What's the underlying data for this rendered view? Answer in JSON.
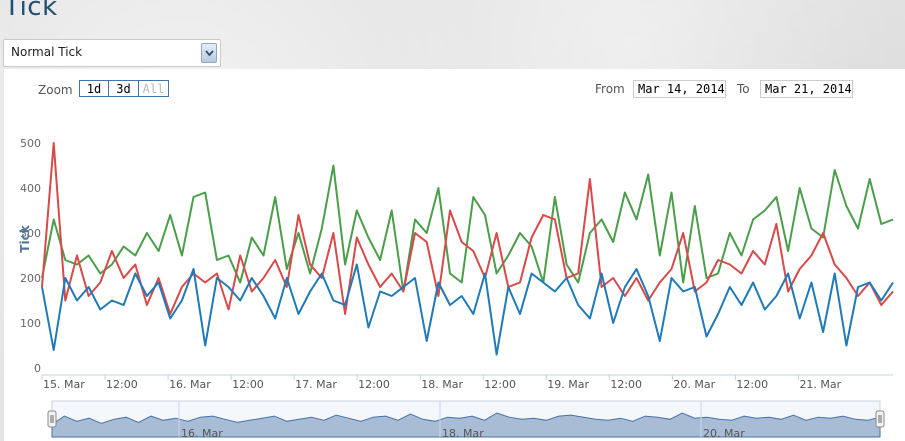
{
  "page": {
    "title": "Tick"
  },
  "selector": {
    "value": "Normal Tick"
  },
  "zoom": {
    "label": "Zoom",
    "buttons": [
      "1d",
      "3d",
      "All"
    ]
  },
  "range": {
    "from_label": "From",
    "from_value": "Mar 14, 2014",
    "to_label": "To",
    "to_value": "Mar 21, 2014"
  },
  "chart_data": {
    "type": "line",
    "ylabel": "Tick",
    "ylim": [
      0,
      500
    ],
    "yticks": [
      0,
      100,
      200,
      300,
      400,
      500
    ],
    "xlim": [
      "2014-03-15T00:00",
      "2014-03-21T18:00"
    ],
    "xticks": [
      {
        "t": "2014-03-15T00:00",
        "label": "15. Mar"
      },
      {
        "t": "2014-03-15T12:00",
        "label": "12:00"
      },
      {
        "t": "2014-03-16T00:00",
        "label": "16. Mar"
      },
      {
        "t": "2014-03-16T12:00",
        "label": "12:00"
      },
      {
        "t": "2014-03-17T00:00",
        "label": "17. Mar"
      },
      {
        "t": "2014-03-17T12:00",
        "label": "12:00"
      },
      {
        "t": "2014-03-18T00:00",
        "label": "18. Mar"
      },
      {
        "t": "2014-03-18T12:00",
        "label": "12:00"
      },
      {
        "t": "2014-03-19T00:00",
        "label": "19. Mar"
      },
      {
        "t": "2014-03-19T12:00",
        "label": "12:00"
      },
      {
        "t": "2014-03-20T00:00",
        "label": "20. Mar"
      },
      {
        "t": "2014-03-20T12:00",
        "label": "12:00"
      },
      {
        "t": "2014-03-21T00:00",
        "label": "21. Mar"
      }
    ],
    "navigator_ticks": [
      "16. Mar",
      "18. Mar",
      "20. Mar"
    ],
    "series": [
      {
        "color": "#4a9e4a",
        "values": [
          200,
          330,
          240,
          230,
          250,
          210,
          230,
          270,
          250,
          300,
          260,
          340,
          250,
          380,
          390,
          240,
          250,
          190,
          290,
          250,
          380,
          220,
          300,
          210,
          310,
          450,
          230,
          350,
          290,
          240,
          350,
          170,
          330,
          300,
          400,
          210,
          190,
          380,
          340,
          210,
          250,
          300,
          270,
          190,
          380,
          230,
          190,
          300,
          330,
          280,
          390,
          330,
          430,
          250,
          390,
          190,
          360,
          200,
          210,
          300,
          250,
          330,
          350,
          380,
          260,
          400,
          310,
          290,
          440,
          360,
          310,
          420,
          320,
          330
        ]
      },
      {
        "color": "#d84a4a",
        "values": [
          180,
          500,
          150,
          250,
          160,
          190,
          260,
          200,
          230,
          140,
          200,
          120,
          180,
          210,
          190,
          210,
          130,
          250,
          170,
          200,
          240,
          180,
          340,
          230,
          200,
          300,
          120,
          290,
          230,
          180,
          210,
          170,
          300,
          280,
          160,
          350,
          280,
          260,
          200,
          300,
          180,
          190,
          290,
          340,
          330,
          200,
          210,
          420,
          180,
          200,
          160,
          200,
          150,
          190,
          220,
          300,
          170,
          190,
          240,
          230,
          210,
          260,
          230,
          320,
          170,
          220,
          250,
          300,
          230,
          200,
          160,
          190,
          140,
          170
        ]
      },
      {
        "color": "#1f7ab8",
        "values": [
          180,
          40,
          200,
          150,
          180,
          130,
          150,
          140,
          210,
          160,
          190,
          110,
          150,
          220,
          50,
          200,
          180,
          150,
          200,
          160,
          110,
          200,
          120,
          170,
          210,
          150,
          140,
          230,
          90,
          170,
          160,
          180,
          200,
          60,
          190,
          140,
          160,
          120,
          210,
          30,
          180,
          120,
          210,
          190,
          170,
          200,
          140,
          110,
          210,
          100,
          180,
          220,
          160,
          60,
          200,
          170,
          180,
          70,
          120,
          180,
          140,
          190,
          130,
          160,
          210,
          110,
          190,
          80,
          210,
          50,
          180,
          190,
          150,
          190
        ]
      }
    ],
    "navigator_values": [
      120,
      200,
      150,
      180,
      130,
      170,
      190,
      140,
      200,
      160,
      180,
      150,
      190,
      200,
      170,
      140,
      160,
      180,
      200,
      150,
      170,
      190,
      160,
      210,
      180,
      150,
      190,
      200,
      160,
      220,
      170,
      150,
      190,
      180,
      200,
      160,
      230,
      190,
      170,
      180,
      160,
      200,
      210,
      190,
      170,
      160,
      180,
      150,
      200,
      190,
      170,
      230,
      180,
      190,
      170,
      160,
      200,
      180,
      190,
      170,
      210,
      160,
      190,
      180,
      200,
      170,
      160,
      190
    ]
  }
}
